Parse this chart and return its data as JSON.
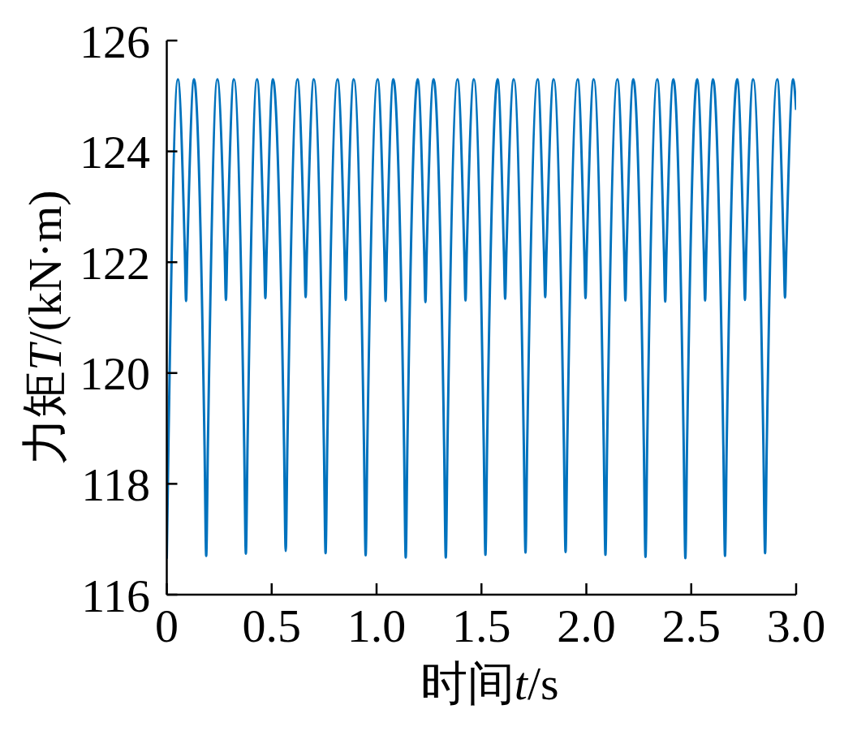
{
  "chart_data": {
    "type": "line",
    "xlabel": "时间t/s",
    "ylabel": "力矩T/(kN·m)",
    "color": "#0072bd",
    "marker": "none",
    "line_style": "solid",
    "xlim": [
      0,
      3
    ],
    "ylim": [
      116,
      126
    ],
    "xticks": [
      0,
      0.5,
      {
        "value": 1,
        "label": "1.0"
      },
      1.5,
      {
        "value": 2,
        "label": "2.0"
      },
      2.5,
      {
        "value": 3,
        "label": "3.0"
      }
    ],
    "yticks": [
      116,
      118,
      120,
      122,
      124,
      126
    ],
    "x": [
      0,
      0.008,
      0.053,
      0.086,
      0.092,
      0.098,
      0.13,
      0.18,
      0.188,
      0.196,
      0.241,
      0.276,
      0.282,
      0.288,
      0.32,
      0.369,
      0.377,
      0.385,
      0.43,
      0.464,
      0.47,
      0.476,
      0.506,
      0.559,
      0.567,
      0.575,
      0.623,
      0.656,
      0.662,
      0.668,
      0.701,
      0.749,
      0.757,
      0.765,
      0.814,
      0.847,
      0.853,
      0.859,
      0.891,
      0.94,
      0.948,
      0.956,
      1.005,
      1.037,
      1.043,
      1.049,
      1.08,
      1.131,
      1.139,
      1.147,
      1.196,
      1.227,
      1.233,
      1.239,
      1.272,
      1.322,
      1.33,
      1.338,
      1.386,
      1.418,
      1.424,
      1.43,
      1.464,
      1.511,
      1.519,
      1.527,
      1.577,
      1.607,
      1.613,
      1.619,
      1.654,
      1.702,
      1.71,
      1.718,
      1.768,
      1.798,
      1.804,
      1.81,
      1.844,
      1.893,
      1.901,
      1.909,
      1.959,
      1.99,
      1.996,
      2.002,
      2.035,
      2.083,
      2.091,
      2.099,
      2.148,
      2.18,
      2.186,
      2.192,
      2.224,
      2.274,
      2.282,
      2.29,
      2.338,
      2.37,
      2.376,
      2.382,
      2.415,
      2.464,
      2.472,
      2.48,
      2.528,
      2.56,
      2.566,
      2.572,
      2.604,
      2.653,
      2.661,
      2.669,
      2.719,
      2.75,
      2.756,
      2.762,
      2.795,
      2.844,
      2.852,
      2.86,
      2.91,
      2.941,
      2.947,
      2.953,
      2.986,
      3
    ],
    "values": [
      116.65,
      118.7,
      125.3,
      122.2,
      121.3,
      122.2,
      125.3,
      118.7,
      116.7,
      118.7,
      125.3,
      122.2,
      121.32,
      122.2,
      125.3,
      118.7,
      116.74,
      118.7,
      125.3,
      122.2,
      121.35,
      122.2,
      125.3,
      118.7,
      116.79,
      118.7,
      125.3,
      122.2,
      121.37,
      122.2,
      125.3,
      118.7,
      116.75,
      118.7,
      125.3,
      122.2,
      121.32,
      122.2,
      125.3,
      118.7,
      116.71,
      118.7,
      125.3,
      122.2,
      121.3,
      122.2,
      125.3,
      118.7,
      116.67,
      118.7,
      125.3,
      122.2,
      121.28,
      122.2,
      125.3,
      118.7,
      116.67,
      118.7,
      125.3,
      122.2,
      121.31,
      122.2,
      125.3,
      118.7,
      116.72,
      118.7,
      125.3,
      122.2,
      121.34,
      122.2,
      125.3,
      118.7,
      116.76,
      118.7,
      125.3,
      122.2,
      121.37,
      122.2,
      125.3,
      118.7,
      116.77,
      118.7,
      125.3,
      122.2,
      121.35,
      122.2,
      125.3,
      118.7,
      116.72,
      118.7,
      125.3,
      122.2,
      121.31,
      122.2,
      125.3,
      118.7,
      116.68,
      118.7,
      125.3,
      122.2,
      121.29,
      122.2,
      125.3,
      118.7,
      116.66,
      118.7,
      125.3,
      122.2,
      121.31,
      122.2,
      125.3,
      118.7,
      116.7,
      118.7,
      125.3,
      122.2,
      121.32,
      122.2,
      125.3,
      118.7,
      116.75,
      118.7,
      125.3,
      122.2,
      121.36,
      122.2,
      125.3,
      124.75
    ]
  }
}
